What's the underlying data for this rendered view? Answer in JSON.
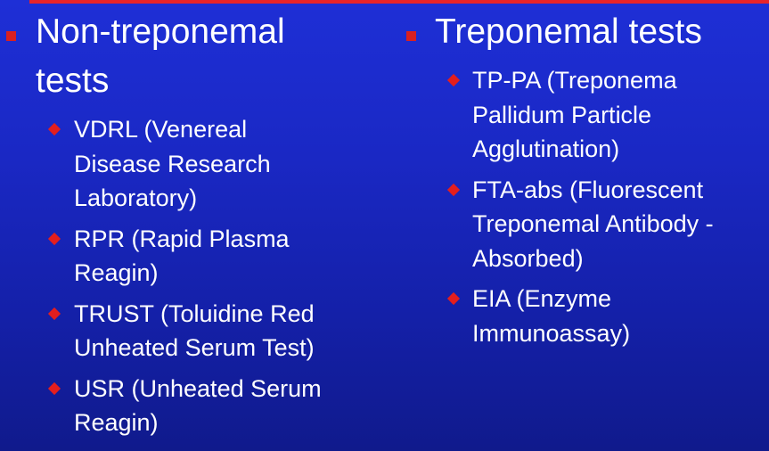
{
  "left": {
    "heading": [
      "Non-treponemal",
      "tests"
    ],
    "items": [
      [
        "VDRL (Venereal",
        "Disease Research",
        "Laboratory)"
      ],
      [
        "RPR (Rapid Plasma",
        "Reagin)"
      ],
      [
        "TRUST (Toluidine Red",
        "Unheated Serum Test)"
      ],
      [
        "USR (Unheated Serum",
        "Reagin)"
      ]
    ]
  },
  "right": {
    "heading": [
      "Treponemal tests"
    ],
    "items": [
      [
        "TP-PA (Treponema",
        "Pallidum Particle",
        "Agglutination)"
      ],
      [
        "FTA-abs (Fluorescent",
        "Treponemal Antibody -",
        "Absorbed)"
      ],
      [
        "EIA (Enzyme",
        "Immunoassay)"
      ]
    ]
  },
  "colors": {
    "background": "#1a28c4",
    "bullet": "#e41e1e",
    "text": "#ffffff"
  }
}
